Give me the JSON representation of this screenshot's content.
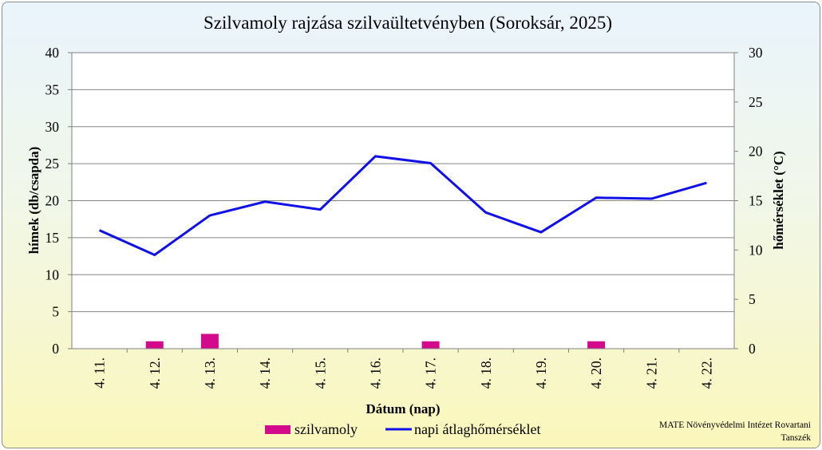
{
  "chart_data": {
    "type": "bar+line",
    "title": "Szilvamoly rajzása szilvaültetvényben (Soroksár, 2025)",
    "categories": [
      "4. 11.",
      "4. 12.",
      "4. 13.",
      "4. 14.",
      "4. 15.",
      "4. 16.",
      "4. 17.",
      "4. 18.",
      "4. 19.",
      "4. 20.",
      "4. 21.",
      "4. 22."
    ],
    "series": [
      {
        "name": "szilvamoly",
        "type": "bar",
        "axis": "left",
        "color": "#d40a8c",
        "values": [
          0,
          1,
          2,
          0,
          0,
          0,
          1,
          0,
          0,
          1,
          0,
          0
        ]
      },
      {
        "name": "napi átlaghőmérséklet",
        "type": "line",
        "axis": "right",
        "color": "#1010e8",
        "values": [
          12.0,
          9.5,
          13.5,
          14.9,
          14.1,
          19.5,
          18.8,
          13.8,
          11.8,
          15.3,
          15.2,
          16.8
        ]
      }
    ],
    "xlabel": "Dátum (nap)",
    "ylabel": "hímek (db/csapda)",
    "y2label": "hőmérséklet (°C)",
    "ylim": [
      0,
      40
    ],
    "y2lim": [
      0,
      30
    ],
    "yticks": [
      "0",
      "5",
      "10",
      "15",
      "20",
      "25",
      "30",
      "35",
      "40"
    ],
    "y2ticks": [
      "0",
      "5",
      "10",
      "15",
      "20",
      "25",
      "30"
    ],
    "grid": true,
    "legend_position": "bottom",
    "source_note": [
      "MATE Növényvédelmi Intézet Rovartani",
      "Tanszék"
    ]
  }
}
